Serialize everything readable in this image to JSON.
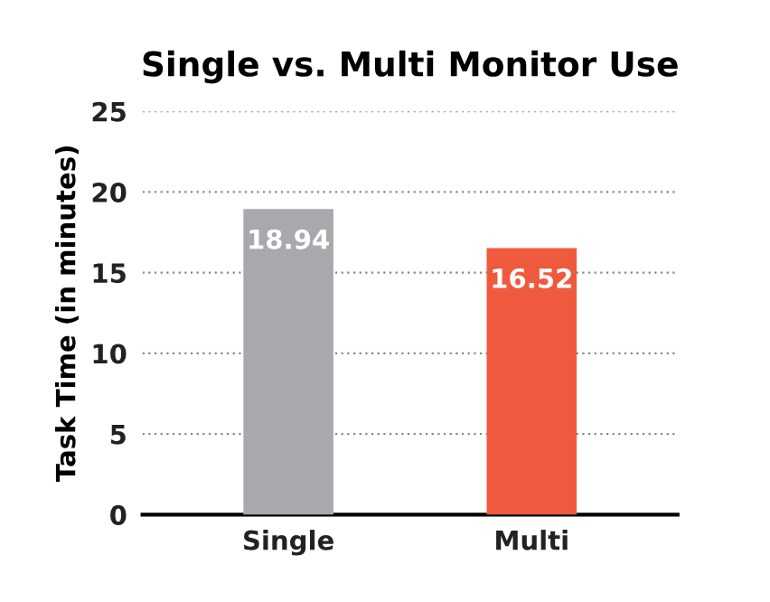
{
  "chart_data": {
    "type": "bar",
    "title": "Single vs. Multi Monitor Use",
    "ylabel": "Task Time (in minutes)",
    "categories": [
      "Single",
      "Multi"
    ],
    "values": [
      18.94,
      16.52
    ],
    "colors": [
      "#a7a9ac",
      "#ef5a3f"
    ],
    "ylim": [
      0,
      25
    ],
    "yticks": [
      0,
      5,
      10,
      15,
      20,
      25
    ],
    "grid": "y",
    "data_labels": true
  }
}
